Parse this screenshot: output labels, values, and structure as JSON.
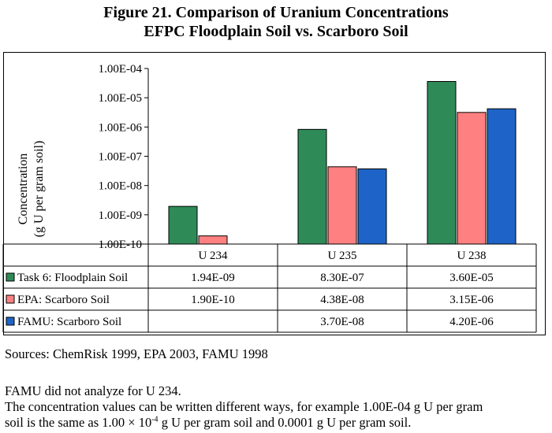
{
  "title_line1": "Figure 21. Comparison of Uranium Concentrations",
  "title_line2": "EFPC Floodplain Soil vs. Scarboro Soil",
  "ylabel_line1": "Concentration",
  "ylabel_line2": "(g U per gram soil)",
  "sources": "Sources:  ChemRisk 1999, EPA 2003, FAMU 1998",
  "note1": "FAMU did not analyze for U 234.",
  "note2": "The concentration values can be written different ways, for example 1.00E-04 g U per gram",
  "note3_a": "soil is the same as 1.00 × 10",
  "note3_exp": "-4",
  "note3_b": " g U per gram soil and 0.0001 g U per gram soil.",
  "colors": {
    "series1": "#2e8b57",
    "series2": "#ff8080",
    "series3": "#1e64c8"
  },
  "chart_data": {
    "type": "bar",
    "yscale": "log",
    "ylim": [
      1e-10,
      0.0001
    ],
    "yticks": [
      "1.00E-04",
      "1.00E-05",
      "1.00E-06",
      "1.00E-07",
      "1.00E-08",
      "1.00E-09",
      "1.00E-10"
    ],
    "categories": [
      "U 234",
      "U 235",
      "U 238"
    ],
    "series": [
      {
        "name": "Task 6: Floodplain Soil",
        "values": [
          1.94e-09,
          8.3e-07,
          3.6e-05
        ],
        "labels": [
          "1.94E-09",
          "8.30E-07",
          "3.60E-05"
        ]
      },
      {
        "name": "EPA: Scarboro Soil",
        "values": [
          1.9e-10,
          4.38e-08,
          3.15e-06
        ],
        "labels": [
          "1.90E-10",
          "4.38E-08",
          "3.15E-06"
        ]
      },
      {
        "name": "FAMU: Scarboro Soil",
        "values": [
          null,
          3.7e-08,
          4.2e-06
        ],
        "labels": [
          "",
          "3.70E-08",
          "4.20E-06"
        ]
      }
    ],
    "grid": false,
    "legend": "data-table"
  }
}
